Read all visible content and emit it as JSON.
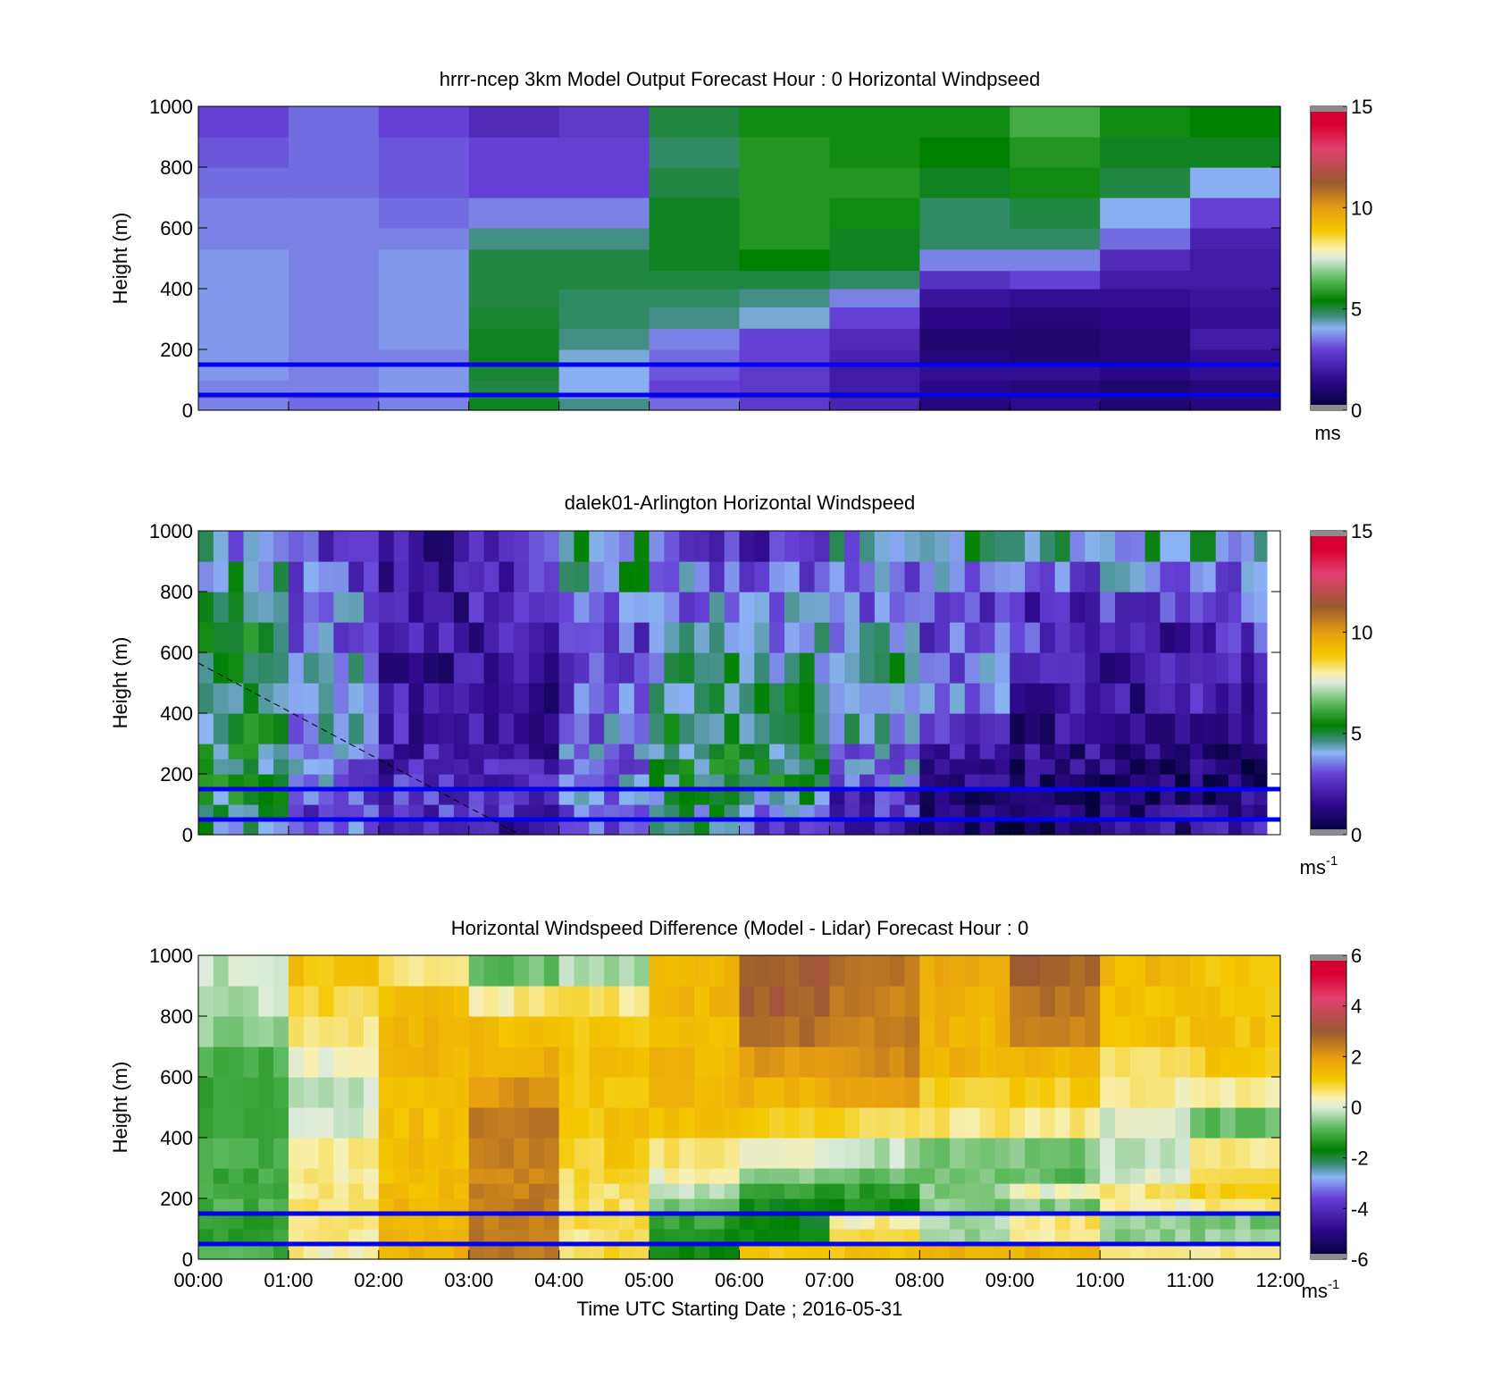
{
  "figure": {
    "xticks": [
      "00:00",
      "01:00",
      "02:00",
      "03:00",
      "04:00",
      "05:00",
      "06:00",
      "07:00",
      "08:00",
      "09:00",
      "10:00",
      "11:00",
      "12:00"
    ],
    "xlabel": "Time UTC  Starting Date ; 2016-05-31"
  },
  "chart_data": [
    {
      "type": "heatmap",
      "title": "hrrr-ncep 3km Model Output   Forecast Hour : 0 Horizontal Windpseed",
      "ylabel": "Height (m)",
      "ylim": [
        0,
        1000
      ],
      "yticks": [
        "0",
        "200",
        "400",
        "600",
        "800",
        "1000"
      ],
      "x_hours": [
        0,
        12
      ],
      "colorbar": {
        "min": 0,
        "max": 15,
        "ticks": [
          "0",
          "5",
          "10",
          "15"
        ],
        "unit": "ms",
        "unit_sup": ""
      },
      "reference_lines_m": [
        150,
        50
      ],
      "reference_line_color": "#0000ee",
      "column_hours": [
        0,
        1,
        2,
        3,
        4,
        5,
        6,
        7,
        8,
        9,
        10,
        11
      ],
      "bin_edges_m": [
        0,
        40,
        60,
        100,
        150,
        200,
        270,
        340,
        400,
        460,
        530,
        600,
        700,
        800,
        900,
        1000
      ],
      "values": [
        [
          3.6,
          3.4,
          3.6,
          5.2,
          4.6,
          3.4,
          2.8,
          2.2,
          1.2,
          1.5,
          1.0,
          1.2
        ],
        [
          3.4,
          3.2,
          3.4,
          5.0,
          3.8,
          2.8,
          2.6,
          1.8,
          1.2,
          1.4,
          1.2,
          1.4
        ],
        [
          3.6,
          3.6,
          3.8,
          5.0,
          4.0,
          3.0,
          2.8,
          2.0,
          1.4,
          1.2,
          1.0,
          1.2
        ],
        [
          3.8,
          3.6,
          3.8,
          5.1,
          4.0,
          3.2,
          2.8,
          2.0,
          1.6,
          1.6,
          1.4,
          1.6
        ],
        [
          3.8,
          3.6,
          3.6,
          5.2,
          4.2,
          3.4,
          3.0,
          2.2,
          1.2,
          1.0,
          1.2,
          1.6
        ],
        [
          3.8,
          3.6,
          3.8,
          5.2,
          4.6,
          3.6,
          3.0,
          2.4,
          1.0,
          1.0,
          1.2,
          2.0
        ],
        [
          3.8,
          3.6,
          3.8,
          5.1,
          4.8,
          4.6,
          4.2,
          3.0,
          1.4,
          1.2,
          1.4,
          1.6
        ],
        [
          3.8,
          3.6,
          3.8,
          5.0,
          4.8,
          4.8,
          4.6,
          3.6,
          1.8,
          1.6,
          1.6,
          1.8
        ],
        [
          3.8,
          3.6,
          3.8,
          5.0,
          5.0,
          5.0,
          5.0,
          4.8,
          2.6,
          3.0,
          2.0,
          2.0
        ],
        [
          3.8,
          3.6,
          3.8,
          5.0,
          5.0,
          5.2,
          5.4,
          5.2,
          3.6,
          3.6,
          2.4,
          2.0
        ],
        [
          3.6,
          3.6,
          3.6,
          4.6,
          4.6,
          5.2,
          5.8,
          5.2,
          4.8,
          4.8,
          3.4,
          2.2
        ],
        [
          3.6,
          3.6,
          3.4,
          3.6,
          3.6,
          5.2,
          5.8,
          5.6,
          4.8,
          5.0,
          4.0,
          3.0
        ],
        [
          3.4,
          3.4,
          3.2,
          3.0,
          3.0,
          5.0,
          5.8,
          5.8,
          5.2,
          5.6,
          5.0,
          4.0
        ],
        [
          3.2,
          3.4,
          3.2,
          3.0,
          3.0,
          4.8,
          5.8,
          5.6,
          5.4,
          5.8,
          5.2,
          5.2
        ],
        [
          3.0,
          3.4,
          3.0,
          2.4,
          2.8,
          5.0,
          5.6,
          5.6,
          5.6,
          6.2,
          5.6,
          5.4
        ]
      ]
    },
    {
      "type": "heatmap",
      "title": "dalek01-Arlington  Horizontal Windspeed",
      "ylabel": "Height (m)",
      "ylim": [
        0,
        1000
      ],
      "yticks": [
        "0",
        "200",
        "400",
        "600",
        "800",
        "1000"
      ],
      "x_hours": [
        0,
        12
      ],
      "colorbar": {
        "min": 0,
        "max": 15,
        "ticks": [
          "0",
          "5",
          "10",
          "15"
        ],
        "unit": "ms",
        "unit_sup": "-1"
      },
      "reference_lines_m": [
        150,
        50
      ],
      "reference_line_color": "#0000ee",
      "dashed_line": {
        "from": [
          0,
          570
        ],
        "to": [
          3.6,
          0
        ],
        "x_units": "hours",
        "y_units": "m"
      },
      "data_end_hour": 11.85,
      "column_hours": [
        0,
        1,
        2,
        3,
        4,
        5,
        6,
        7,
        8,
        9,
        10,
        11
      ],
      "bin_edges_m": [
        0,
        50,
        100,
        150,
        200,
        250,
        300,
        400,
        500,
        600,
        700,
        800,
        900,
        1000
      ],
      "values": [
        [
          4.5,
          3.5,
          2.5,
          2.0,
          3.0,
          4.5,
          3.0,
          2.0,
          0.8,
          0.6,
          1.6,
          2.0
        ],
        [
          4.5,
          3.0,
          2.5,
          2.5,
          3.0,
          4.5,
          3.5,
          2.5,
          1.0,
          0.8,
          1.2,
          1.6
        ],
        [
          5.0,
          3.0,
          2.5,
          2.5,
          3.5,
          4.5,
          4.5,
          2.5,
          1.2,
          0.8,
          1.0,
          1.2
        ],
        [
          5.0,
          3.5,
          2.5,
          2.5,
          3.5,
          5.0,
          5.0,
          3.5,
          1.2,
          1.0,
          1.0,
          1.0
        ],
        [
          5.0,
          3.5,
          2.0,
          2.0,
          3.5,
          5.0,
          5.0,
          3.5,
          1.5,
          1.2,
          1.2,
          1.0
        ],
        [
          5.0,
          4.0,
          2.0,
          2.0,
          3.5,
          5.0,
          5.0,
          3.5,
          2.0,
          1.5,
          1.4,
          1.2
        ],
        [
          5.0,
          4.0,
          2.0,
          1.8,
          3.5,
          5.0,
          5.0,
          4.0,
          2.5,
          1.5,
          1.5,
          1.5
        ],
        [
          5.0,
          4.0,
          2.0,
          1.8,
          3.0,
          4.5,
          5.0,
          4.5,
          3.5,
          2.0,
          1.8,
          2.0
        ],
        [
          5.0,
          4.0,
          1.8,
          1.8,
          3.0,
          4.5,
          4.5,
          4.5,
          3.5,
          2.5,
          2.0,
          2.5
        ],
        [
          5.0,
          3.5,
          1.8,
          2.0,
          3.0,
          4.0,
          4.0,
          4.0,
          3.0,
          2.5,
          2.0,
          2.5
        ],
        [
          4.5,
          3.5,
          1.8,
          2.2,
          3.5,
          3.5,
          3.5,
          3.5,
          3.0,
          2.5,
          2.5,
          3.0
        ],
        [
          4.5,
          3.0,
          2.0,
          2.5,
          4.5,
          3.5,
          3.0,
          3.5,
          3.5,
          3.0,
          3.5,
          3.5
        ],
        [
          4.0,
          2.5,
          1.8,
          2.5,
          4.5,
          3.0,
          2.5,
          4.0,
          4.5,
          4.5,
          4.5,
          4.5
        ]
      ]
    },
    {
      "type": "heatmap",
      "title": "Horizontal Windspeed Difference (Model - Lidar) Forecast Hour : 0",
      "ylabel": "Height (m)",
      "ylim": [
        0,
        1000
      ],
      "yticks": [
        "0",
        "200",
        "400",
        "600",
        "800",
        "1000"
      ],
      "x_hours": [
        0,
        12
      ],
      "colorbar": {
        "min": -6,
        "max": 6,
        "ticks": [
          "-6",
          "-4",
          "-2",
          "0",
          "2",
          "4",
          "6"
        ],
        "unit": "ms",
        "unit_sup": "-1"
      },
      "reference_lines_m": [
        150,
        50
      ],
      "reference_line_color": "#0000ee",
      "column_hours": [
        0,
        1,
        2,
        3,
        4,
        5,
        6,
        7,
        8,
        9,
        10,
        11
      ],
      "bin_edges_m": [
        0,
        50,
        100,
        150,
        200,
        250,
        300,
        400,
        500,
        600,
        700,
        800,
        900,
        1000
      ],
      "values": [
        [
          -1.0,
          0.4,
          1.5,
          2.5,
          0.8,
          -1.5,
          1.0,
          1.2,
          1.5,
          1.5,
          0.5,
          0.6
        ],
        [
          -1.2,
          0.5,
          1.5,
          2.5,
          0.6,
          -1.4,
          -1.5,
          0.8,
          -0.4,
          0.5,
          -0.5,
          -0.5
        ],
        [
          -1.2,
          0.6,
          1.4,
          2.5,
          0.8,
          -1.2,
          -1.8,
          0.4,
          -0.3,
          0.6,
          -0.4,
          -0.6
        ],
        [
          -1.0,
          0.6,
          1.4,
          2.5,
          0.7,
          -0.6,
          -1.6,
          -1.5,
          -0.6,
          -0.6,
          0.3,
          0.5
        ],
        [
          -1.0,
          0.6,
          1.3,
          2.4,
          0.7,
          -0.2,
          -1.2,
          -1.2,
          -0.5,
          0.2,
          0.6,
          1.0
        ],
        [
          -1.1,
          0.5,
          1.3,
          2.3,
          0.8,
          0.3,
          -0.6,
          -0.8,
          -0.7,
          -0.8,
          0.0,
          0.8
        ],
        [
          -1.0,
          0.4,
          1.3,
          2.4,
          1.0,
          0.6,
          0.2,
          -0.2,
          -0.6,
          -0.6,
          -0.2,
          0.5
        ],
        [
          -1.1,
          0.0,
          1.3,
          2.5,
          1.2,
          1.2,
          1.0,
          0.8,
          0.6,
          0.6,
          0.0,
          -0.8
        ],
        [
          -1.2,
          -0.2,
          1.3,
          2.1,
          1.2,
          1.4,
          1.5,
          1.8,
          1.0,
          1.0,
          0.4,
          0.4
        ],
        [
          -1.0,
          0.2,
          1.4,
          1.6,
          1.2,
          1.4,
          2.0,
          2.2,
          1.5,
          1.5,
          0.8,
          1.0
        ],
        [
          -0.5,
          0.6,
          1.4,
          1.3,
          1.2,
          1.4,
          2.6,
          2.4,
          1.5,
          2.2,
          1.2,
          1.2
        ],
        [
          -0.2,
          0.8,
          1.3,
          0.5,
          0.6,
          1.4,
          3.0,
          2.4,
          1.6,
          2.6,
          1.3,
          1.2
        ],
        [
          -0.2,
          1.2,
          0.6,
          -0.8,
          -0.3,
          1.5,
          3.0,
          2.6,
          1.6,
          2.8,
          1.4,
          1.2
        ]
      ]
    }
  ]
}
